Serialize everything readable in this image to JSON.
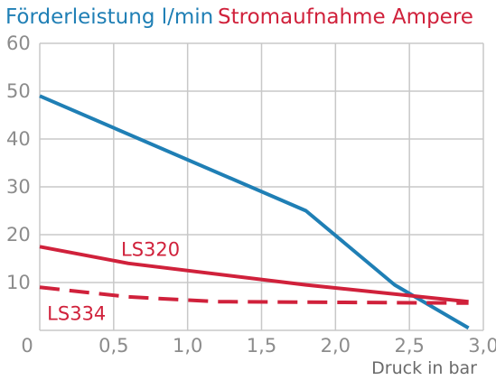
{
  "chart_data": {
    "type": "line",
    "title_left": "Förderleistung l/min",
    "title_right": "Stromaufnahme Ampere",
    "xlabel": "Druck in bar",
    "x_ticks": [
      "0",
      "0,5",
      "1,0",
      "1,5",
      "2,0",
      "2,5",
      "3,0"
    ],
    "y_ticks": [
      "10",
      "20",
      "30",
      "40",
      "50",
      "60"
    ],
    "xlim": [
      0,
      3.0
    ],
    "ylim": [
      0,
      60
    ],
    "grid": true,
    "series": [
      {
        "label": "",
        "axis": "Förderleistung l/min",
        "color": "#1f7fb5",
        "dash": "solid",
        "points": [
          [
            0,
            49
          ],
          [
            1.8,
            25
          ],
          [
            2.4,
            9.5
          ],
          [
            2.9,
            0.5
          ]
        ]
      },
      {
        "label": "LS320",
        "axis": "Stromaufnahme Ampere",
        "color": "#d0213b",
        "dash": "solid",
        "points": [
          [
            0,
            17.5
          ],
          [
            0.6,
            14
          ],
          [
            1.8,
            9.5
          ],
          [
            2.9,
            6
          ]
        ]
      },
      {
        "label": "LS334",
        "axis": "Stromaufnahme Ampere",
        "color": "#d0213b",
        "dash": "dashed",
        "points": [
          [
            0,
            9
          ],
          [
            0.6,
            7
          ],
          [
            1.2,
            6
          ],
          [
            2.9,
            5.7
          ]
        ]
      }
    ]
  }
}
